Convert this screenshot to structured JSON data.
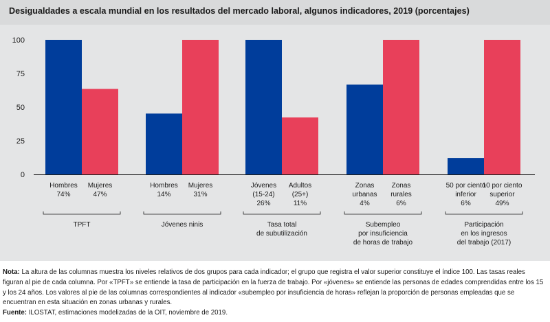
{
  "title": "Desigualdades a escala mundial en los resultados del mercado laboral, algunos indicadores, 2019 (porcentajes)",
  "notes": {
    "nota_label": "Nota:",
    "nota_text": "La altura de las columnas muestra los niveles relativos de dos grupos para cada indicador; el grupo que registra el valor superior constituye el índice 100. Las tasas reales figuran al pie de cada columna. Por «TPFT» se entiende la tasa de participación en la fuerza de trabajo. Por «jóvenes» se entiende las personas de edades comprendidas entre los 15 y los 24 años. Los valores al pie de las columnas correspondientes al indicador «subempleo por insuficiencia de horas» reflejan la proporción de personas empleadas que se encuentran en esta situación en zonas urbanas y rurales.",
    "fuente_label": "Fuente:",
    "fuente_text": "ILOSTAT, estimaciones modelizadas de la OIT, noviembre de 2019."
  },
  "chart_data": {
    "type": "bar",
    "ylim": [
      0,
      100
    ],
    "yticks": [
      "0",
      "25",
      "50",
      "75",
      "100"
    ],
    "colors": {
      "first": "#003d9b",
      "second": "#e8405a",
      "plot_bg": "#e4e5e6",
      "axis": "#1a1a1a"
    },
    "groups": [
      {
        "name": "TPFT",
        "name_lines": [
          "TPFT"
        ],
        "bars": [
          {
            "series": "first",
            "value": 100,
            "label_lines": [
              "Hombres",
              "74%"
            ]
          },
          {
            "series": "second",
            "value": 63.5,
            "label_lines": [
              "Mujeres",
              "47%"
            ]
          }
        ]
      },
      {
        "name": "Jóvenes ninis",
        "name_lines": [
          "Jóvenes ninis"
        ],
        "bars": [
          {
            "series": "first",
            "value": 45.2,
            "label_lines": [
              "Hombres",
              "14%"
            ]
          },
          {
            "series": "second",
            "value": 100,
            "label_lines": [
              "Mujeres",
              "31%"
            ]
          }
        ]
      },
      {
        "name": "Tasa total de subutilización",
        "name_lines": [
          "Tasa total",
          "de subutilización"
        ],
        "bars": [
          {
            "series": "first",
            "value": 100,
            "label_lines": [
              "Jóvenes",
              "(15-24)",
              "26%"
            ]
          },
          {
            "series": "second",
            "value": 42.3,
            "label_lines": [
              "Adultos",
              "(25+)",
              "11%"
            ]
          }
        ]
      },
      {
        "name": "Subempleo por insuficiencia de horas de trabajo",
        "name_lines": [
          "Subempleo",
          "por insuficiencia",
          "de horas de trabajo"
        ],
        "bars": [
          {
            "series": "first",
            "value": 66.7,
            "label_lines": [
              "Zonas",
              "urbanas",
              "4%"
            ]
          },
          {
            "series": "second",
            "value": 100,
            "label_lines": [
              "Zonas",
              "rurales",
              "6%"
            ]
          }
        ]
      },
      {
        "name": "Participación en los ingresos del trabajo (2017)",
        "name_lines": [
          "Participación",
          "en los ingresos",
          "del trabajo (2017)"
        ],
        "bars": [
          {
            "series": "first",
            "value": 12.2,
            "label_lines": [
              "50 por ciento",
              "inferior",
              "6%"
            ]
          },
          {
            "series": "second",
            "value": 100,
            "label_lines": [
              "10 por ciento",
              "superior",
              "49%"
            ]
          }
        ]
      }
    ]
  }
}
